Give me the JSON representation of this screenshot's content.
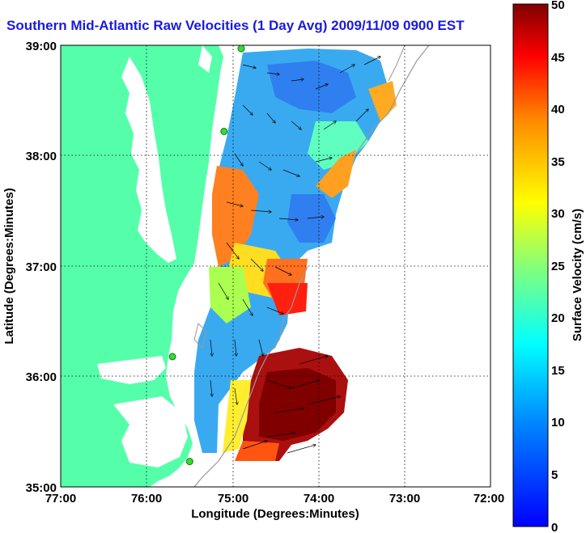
{
  "title": "Southern Mid-Atlantic Raw Velocities (1 Day Avg) 2009/11/09 0900 EST",
  "x_axis": {
    "label": "Longitude (Degrees:Minutes)",
    "ticks": [
      "77:00",
      "76:00",
      "75:00",
      "74:00",
      "73:00",
      "72:00"
    ]
  },
  "y_axis": {
    "label": "Latitude (Degrees:Minutes)",
    "ticks": [
      "39:00",
      "38:00",
      "37:00",
      "36:00",
      "35:00"
    ]
  },
  "colorbar": {
    "label": "Surface Velocity (cm/s)",
    "ticks": [
      "50",
      "45",
      "40",
      "35",
      "30",
      "25",
      "20",
      "15",
      "10",
      "5",
      "0"
    ],
    "min": 0,
    "max": 50,
    "colormap": "jet"
  },
  "colors": {
    "land": "#55ffaa",
    "title": "#1a1adf",
    "station": "#33dd33"
  },
  "chart_data": {
    "type": "heatmap",
    "x_range": [
      -77,
      -72
    ],
    "y_range": [
      35,
      39
    ],
    "grid": true,
    "stations": [
      {
        "lon": -74.9,
        "lat": 38.97
      },
      {
        "lon": -75.1,
        "lat": 38.22
      },
      {
        "lon": -75.7,
        "lat": 36.18
      },
      {
        "lon": -75.5,
        "lat": 35.23
      }
    ]
  }
}
